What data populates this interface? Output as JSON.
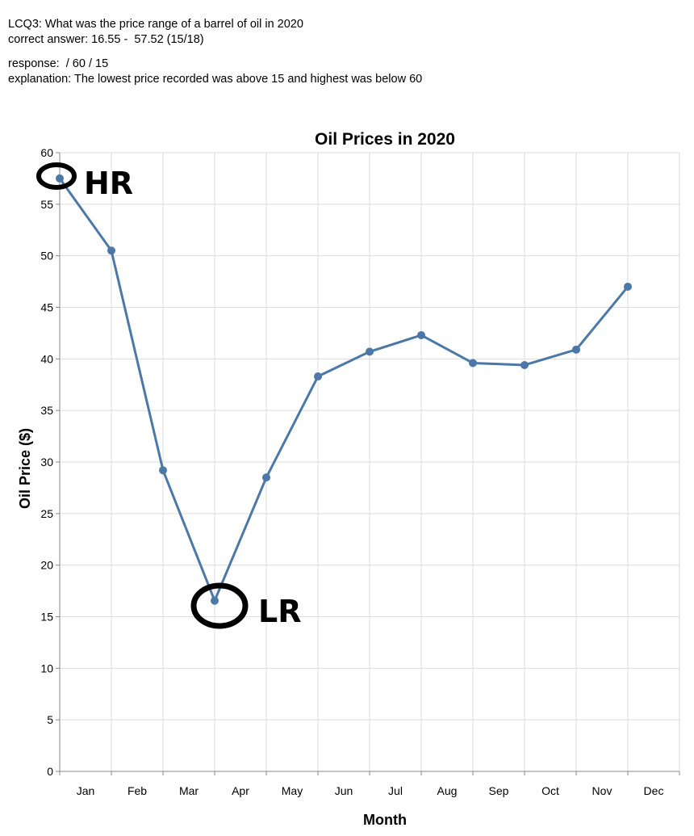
{
  "question": {
    "line1": "LCQ3: What was the price range of a barrel of oil in 2020",
    "line2": "correct answer: 16.55 -  57.52 (15/18)"
  },
  "response": {
    "line1": "response:  / 60 / 15",
    "line2": "explanation: The lowest price recorded was above 15 and highest was below 60"
  },
  "annotations": {
    "high": "HR",
    "low": "LR"
  },
  "chart_data": {
    "type": "line",
    "title": "Oil Prices in 2020",
    "xlabel": "Month",
    "ylabel": "Oil Price ($)",
    "categories": [
      "Jan",
      "Feb",
      "Mar",
      "Apr",
      "May",
      "Jun",
      "Jul",
      "Aug",
      "Sep",
      "Oct",
      "Nov",
      "Dec"
    ],
    "values": [
      57.5,
      50.5,
      29.2,
      16.55,
      28.5,
      38.3,
      40.7,
      42.3,
      39.6,
      39.4,
      40.9,
      47.0
    ],
    "yticks": [
      0,
      5,
      10,
      15,
      20,
      25,
      30,
      35,
      40,
      45,
      50,
      55,
      60
    ],
    "ylim": [
      0,
      60
    ],
    "grid": true,
    "line_color": "#4c78a8"
  }
}
